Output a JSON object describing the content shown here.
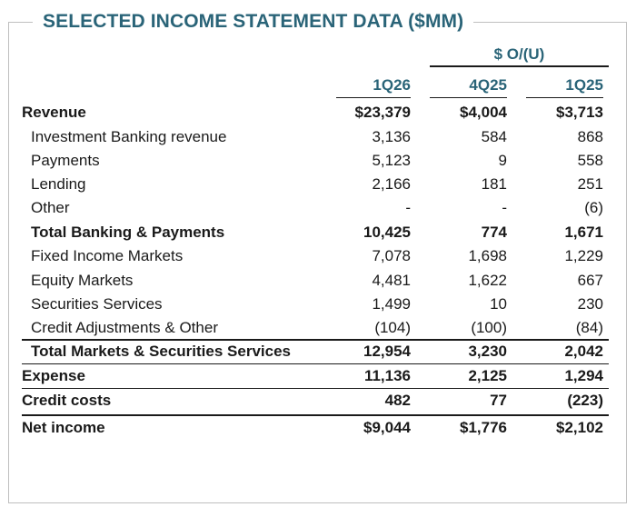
{
  "title": "SELECTED INCOME STATEMENT DATA ($MM)",
  "group_header": "$ O/(U)",
  "columns": [
    "1Q26",
    "4Q25",
    "1Q25"
  ],
  "rows": [
    {
      "label": "Revenue",
      "values": [
        "$23,379",
        "$4,004",
        "$3,713"
      ],
      "bold": true,
      "indent": false
    },
    {
      "label": "Investment Banking revenue",
      "values": [
        "3,136",
        "584",
        "868"
      ],
      "bold": false,
      "indent": true
    },
    {
      "label": "Payments",
      "values": [
        "5,123",
        "9",
        "558"
      ],
      "bold": false,
      "indent": true
    },
    {
      "label": "Lending",
      "values": [
        "2,166",
        "181",
        "251"
      ],
      "bold": false,
      "indent": true
    },
    {
      "label": "Other",
      "values": [
        "-",
        "-",
        "(6)"
      ],
      "bold": false,
      "indent": true
    },
    {
      "label": "Total Banking & Payments",
      "values": [
        "10,425",
        "774",
        "1,671"
      ],
      "bold": true,
      "indent": true
    },
    {
      "label": "Fixed Income Markets",
      "values": [
        "7,078",
        "1,698",
        "1,229"
      ],
      "bold": false,
      "indent": true
    },
    {
      "label": "Equity Markets",
      "values": [
        "4,481",
        "1,622",
        "667"
      ],
      "bold": false,
      "indent": true
    },
    {
      "label": "Securities Services",
      "values": [
        "1,499",
        "10",
        "230"
      ],
      "bold": false,
      "indent": true
    },
    {
      "label": "Credit Adjustments & Other",
      "values": [
        "(104)",
        "(100)",
        "(84)"
      ],
      "bold": false,
      "indent": true
    },
    {
      "label": "Total Markets & Securities Services",
      "values": [
        "12,954",
        "3,230",
        "2,042"
      ],
      "bold": true,
      "indent": true
    },
    {
      "label": "Expense",
      "values": [
        "11,136",
        "2,125",
        "1,294"
      ],
      "bold": true,
      "indent": false
    },
    {
      "label": "Credit costs",
      "values": [
        "482",
        "77",
        "(223)"
      ],
      "bold": true,
      "indent": false
    },
    {
      "label": "Net income",
      "values": [
        "$9,044",
        "$1,776",
        "$2,102"
      ],
      "bold": true,
      "indent": false
    }
  ],
  "colors": {
    "accent": "#2a6478",
    "text": "#1a1a1a",
    "border": "#bfbfbf"
  }
}
